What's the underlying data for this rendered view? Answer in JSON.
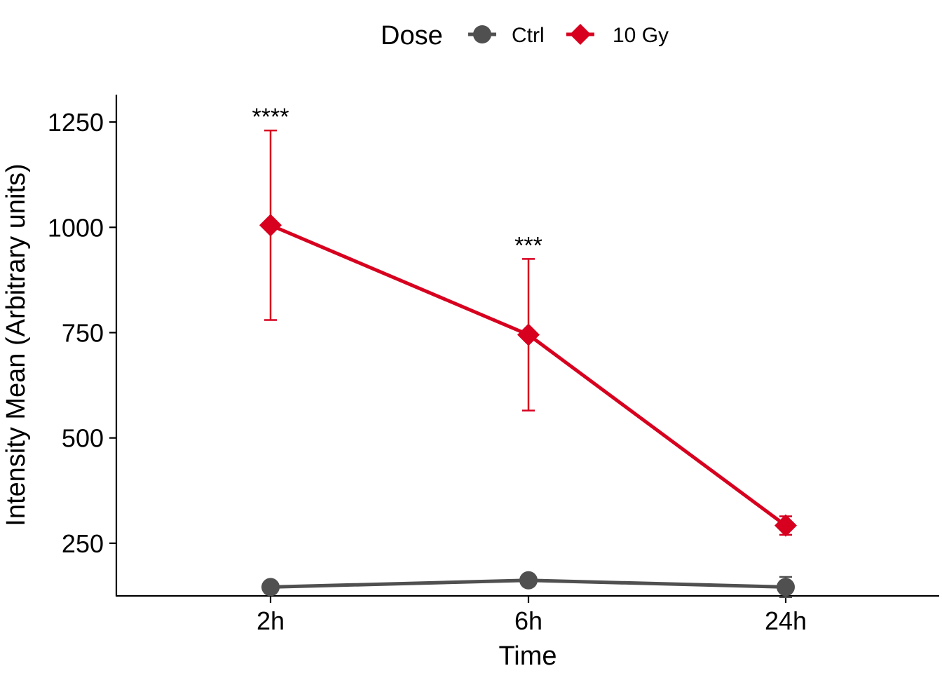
{
  "chart_data": {
    "type": "line",
    "categories": [
      "2h",
      "6h",
      "24h"
    ],
    "xlabel": "Time",
    "ylabel": "Intensity Mean (Arbitrary units)",
    "ylim": [
      125,
      1315
    ],
    "yticks": [
      250,
      500,
      750,
      1000,
      1250
    ],
    "grid": false,
    "legend": {
      "title": "Dose",
      "position": "top"
    },
    "series": [
      {
        "name": "Ctrl",
        "color": "#505050",
        "marker": "circle",
        "values": [
          146,
          162,
          146
        ],
        "errors": [
          5,
          5,
          24
        ]
      },
      {
        "name": "10 Gy",
        "color": "#d7001f",
        "marker": "diamond",
        "values": [
          1005,
          745,
          292
        ],
        "errors": [
          225,
          180,
          22
        ]
      }
    ],
    "annotations": [
      {
        "category": "2h",
        "text": "****"
      },
      {
        "category": "6h",
        "text": "***"
      }
    ]
  }
}
